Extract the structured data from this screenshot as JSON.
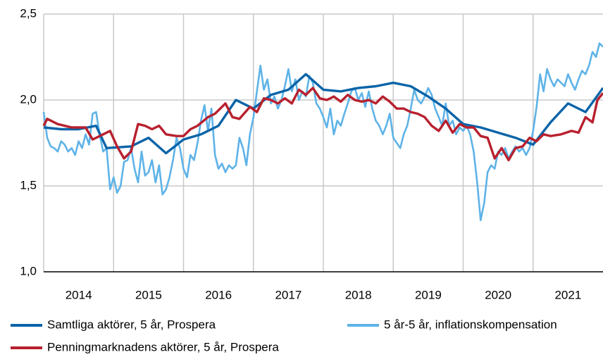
{
  "chart_data": {
    "type": "line",
    "xlim": [
      2014,
      2022
    ],
    "xticks": [
      {
        "value": 2014.5,
        "label": "2014"
      },
      {
        "value": 2015.5,
        "label": "2015"
      },
      {
        "value": 2016.5,
        "label": "2016"
      },
      {
        "value": 2017.5,
        "label": "2017"
      },
      {
        "value": 2018.5,
        "label": "2018"
      },
      {
        "value": 2019.5,
        "label": "2019"
      },
      {
        "value": 2020.5,
        "label": "2020"
      },
      {
        "value": 2021.5,
        "label": "2021"
      }
    ],
    "xgrid": [
      2015,
      2016,
      2017,
      2018,
      2019,
      2020,
      2021
    ],
    "ylim": [
      1.0,
      2.5
    ],
    "yticks": [
      {
        "value": 1.0,
        "label": "1,0"
      },
      {
        "value": 1.5,
        "label": "1,5"
      },
      {
        "value": 2.0,
        "label": "2,0"
      },
      {
        "value": 2.5,
        "label": "2,5"
      }
    ],
    "grid": true,
    "series": [
      {
        "name": "5 år-5 år, inflationskompensation",
        "color": "#5eb3e8",
        "x": [
          2014.0,
          2014.05,
          2014.1,
          2014.15,
          2014.2,
          2014.25,
          2014.3,
          2014.35,
          2014.4,
          2014.45,
          2014.5,
          2014.55,
          2014.6,
          2014.65,
          2014.7,
          2014.75,
          2014.8,
          2014.85,
          2014.9,
          2014.95,
          2015.0,
          2015.05,
          2015.1,
          2015.15,
          2015.2,
          2015.25,
          2015.3,
          2015.35,
          2015.4,
          2015.45,
          2015.5,
          2015.55,
          2015.6,
          2015.65,
          2015.7,
          2015.75,
          2015.8,
          2015.85,
          2015.9,
          2015.95,
          2016.0,
          2016.05,
          2016.1,
          2016.15,
          2016.2,
          2016.25,
          2016.3,
          2016.35,
          2016.4,
          2016.45,
          2016.5,
          2016.55,
          2016.6,
          2016.65,
          2016.7,
          2016.75,
          2016.8,
          2016.85,
          2016.9,
          2016.95,
          2017.0,
          2017.05,
          2017.1,
          2017.15,
          2017.2,
          2017.25,
          2017.3,
          2017.35,
          2017.4,
          2017.45,
          2017.5,
          2017.55,
          2017.6,
          2017.65,
          2017.7,
          2017.75,
          2017.8,
          2017.85,
          2017.9,
          2017.95,
          2018.0,
          2018.05,
          2018.1,
          2018.15,
          2018.2,
          2018.25,
          2018.3,
          2018.35,
          2018.4,
          2018.45,
          2018.5,
          2018.55,
          2018.6,
          2018.65,
          2018.7,
          2018.75,
          2018.8,
          2018.85,
          2018.9,
          2018.95,
          2019.0,
          2019.05,
          2019.1,
          2019.15,
          2019.2,
          2019.25,
          2019.3,
          2019.35,
          2019.4,
          2019.45,
          2019.5,
          2019.55,
          2019.6,
          2019.65,
          2019.7,
          2019.75,
          2019.8,
          2019.85,
          2019.9,
          2019.95,
          2020.0,
          2020.05,
          2020.1,
          2020.15,
          2020.2,
          2020.25,
          2020.3,
          2020.35,
          2020.4,
          2020.45,
          2020.5,
          2020.55,
          2020.6,
          2020.65,
          2020.7,
          2020.75,
          2020.8,
          2020.85,
          2020.9,
          2020.95,
          2021.0,
          2021.05,
          2021.1,
          2021.15,
          2021.2,
          2021.25,
          2021.3,
          2021.35,
          2021.4,
          2021.45,
          2021.5,
          2021.55,
          2021.6,
          2021.65,
          2021.7,
          2021.75,
          2021.8,
          2021.85,
          2021.9,
          2021.95,
          2022.0
        ],
        "values": [
          1.93,
          1.78,
          1.73,
          1.72,
          1.7,
          1.76,
          1.74,
          1.7,
          1.72,
          1.68,
          1.76,
          1.72,
          1.8,
          1.74,
          1.92,
          1.93,
          1.8,
          1.7,
          1.72,
          1.48,
          1.55,
          1.46,
          1.5,
          1.64,
          1.65,
          1.72,
          1.6,
          1.52,
          1.7,
          1.56,
          1.58,
          1.65,
          1.52,
          1.62,
          1.45,
          1.48,
          1.55,
          1.65,
          1.78,
          1.72,
          1.6,
          1.55,
          1.68,
          1.65,
          1.75,
          1.88,
          1.97,
          1.82,
          1.95,
          1.68,
          1.6,
          1.63,
          1.58,
          1.62,
          1.6,
          1.62,
          1.78,
          1.72,
          1.62,
          1.8,
          1.9,
          2.05,
          2.2,
          2.06,
          2.12,
          1.98,
          2.02,
          1.95,
          2.0,
          2.08,
          2.18,
          2.05,
          2.12,
          2.0,
          2.05,
          2.02,
          2.14,
          2.1,
          1.98,
          1.95,
          1.9,
          1.84,
          1.95,
          1.8,
          1.88,
          1.85,
          1.92,
          1.98,
          2.05,
          2.07,
          2.0,
          2.04,
          1.96,
          2.05,
          1.95,
          1.88,
          1.85,
          1.8,
          1.85,
          1.92,
          1.78,
          1.75,
          1.72,
          1.8,
          1.85,
          1.95,
          2.06,
          2.0,
          1.98,
          2.02,
          2.07,
          2.03,
          1.95,
          1.9,
          1.85,
          1.98,
          1.85,
          1.88,
          1.8,
          1.84,
          1.82,
          1.85,
          1.8,
          1.7,
          1.52,
          1.3,
          1.4,
          1.58,
          1.62,
          1.6,
          1.7,
          1.68,
          1.72,
          1.66,
          1.7,
          1.73,
          1.7,
          1.72,
          1.68,
          1.72,
          1.82,
          1.96,
          2.15,
          2.05,
          2.18,
          2.12,
          2.08,
          2.12,
          2.1,
          2.08,
          2.15,
          2.1,
          2.06,
          2.12,
          2.17,
          2.15,
          2.2,
          2.28,
          2.25,
          2.33,
          2.31
        ]
      },
      {
        "name": "Samtliga aktörer, 5 år, Prospera",
        "color": "#0a64a8",
        "x": [
          2014.0,
          2014.25,
          2014.5,
          2014.75,
          2014.9,
          2015.25,
          2015.5,
          2015.75,
          2016.0,
          2016.25,
          2016.5,
          2016.75,
          2017.0,
          2017.25,
          2017.5,
          2017.75,
          2018.0,
          2018.25,
          2018.5,
          2018.75,
          2019.0,
          2019.25,
          2019.5,
          2019.75,
          2020.0,
          2020.25,
          2020.5,
          2020.75,
          2021.0,
          2021.25,
          2021.5,
          2021.75,
          2022.0
        ],
        "values": [
          1.84,
          1.83,
          1.83,
          1.85,
          1.72,
          1.73,
          1.78,
          1.69,
          1.77,
          1.8,
          1.85,
          2.0,
          1.95,
          2.03,
          2.06,
          2.15,
          2.06,
          2.05,
          2.07,
          2.08,
          2.1,
          2.08,
          2.02,
          1.95,
          1.86,
          1.84,
          1.81,
          1.78,
          1.74,
          1.87,
          1.98,
          1.93,
          2.07
        ]
      },
      {
        "name": "Penningmarknadens aktörer, 5 år, Prospera",
        "color": "#b8202e",
        "x": [
          2014.0,
          2014.05,
          2014.2,
          2014.4,
          2014.6,
          2014.7,
          2014.85,
          2014.95,
          2015.05,
          2015.15,
          2015.25,
          2015.35,
          2015.45,
          2015.55,
          2015.65,
          2015.75,
          2015.9,
          2016.0,
          2016.1,
          2016.2,
          2016.35,
          2016.45,
          2016.6,
          2016.7,
          2016.8,
          2016.95,
          2017.05,
          2017.15,
          2017.25,
          2017.35,
          2017.45,
          2017.55,
          2017.65,
          2017.75,
          2017.85,
          2017.95,
          2018.05,
          2018.15,
          2018.25,
          2018.35,
          2018.45,
          2018.55,
          2018.65,
          2018.75,
          2018.85,
          2018.95,
          2019.05,
          2019.15,
          2019.25,
          2019.35,
          2019.45,
          2019.55,
          2019.65,
          2019.75,
          2019.85,
          2019.95,
          2020.05,
          2020.15,
          2020.25,
          2020.35,
          2020.45,
          2020.55,
          2020.65,
          2020.75,
          2020.85,
          2020.95,
          2021.05,
          2021.15,
          2021.25,
          2021.4,
          2021.55,
          2021.65,
          2021.75,
          2021.85,
          2021.92,
          2022.0
        ],
        "values": [
          1.85,
          1.89,
          1.86,
          1.84,
          1.84,
          1.77,
          1.8,
          1.82,
          1.73,
          1.66,
          1.7,
          1.86,
          1.85,
          1.83,
          1.85,
          1.8,
          1.79,
          1.79,
          1.83,
          1.85,
          1.9,
          1.92,
          1.98,
          1.9,
          1.89,
          1.96,
          1.93,
          2.01,
          2.0,
          1.98,
          2.01,
          1.98,
          2.06,
          2.03,
          2.07,
          2.01,
          2.0,
          2.02,
          1.99,
          2.03,
          2.0,
          1.99,
          2.0,
          1.98,
          2.02,
          1.99,
          1.95,
          1.95,
          1.93,
          1.92,
          1.9,
          1.85,
          1.82,
          1.88,
          1.81,
          1.86,
          1.84,
          1.84,
          1.79,
          1.78,
          1.66,
          1.72,
          1.65,
          1.72,
          1.73,
          1.78,
          1.76,
          1.8,
          1.79,
          1.8,
          1.82,
          1.81,
          1.9,
          1.87,
          2.0,
          2.04
        ]
      }
    ]
  }
}
